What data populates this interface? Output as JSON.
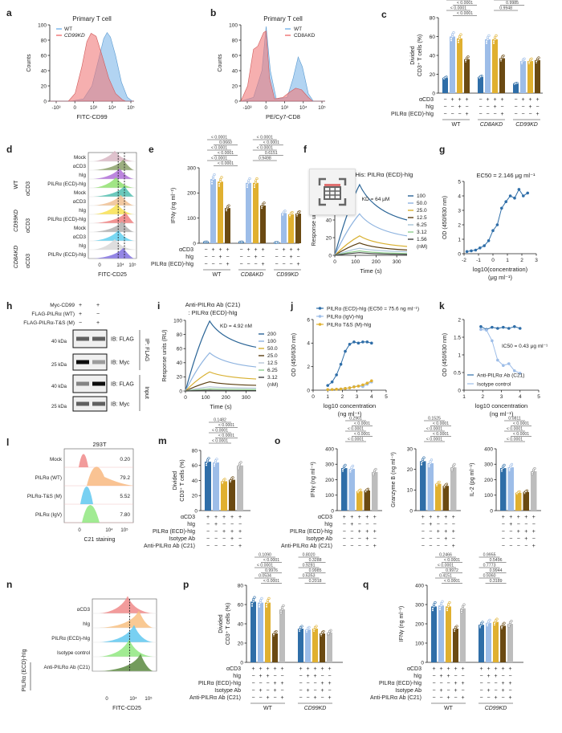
{
  "figure_title": "",
  "overlay_icon": "table-scan-icon",
  "colors": {
    "dark_blue": "#2f6ea8",
    "light_blue": "#9dbde8",
    "gold": "#e0b030",
    "brown": "#6b4a12",
    "grey": "#bdbdbd",
    "wt_hist": "#7fb8ea",
    "kd_hist": "#f07a7a"
  },
  "chart_data": [
    {
      "panel": "a",
      "type": "area",
      "title": "Primary T cell",
      "xlabel": "FITC-CD99",
      "ylabel": "Counts",
      "xticks": [
        "-10³",
        "0",
        "10³",
        "10⁴",
        "10⁵"
      ],
      "yticks": [
        0,
        20,
        40,
        60,
        80,
        100
      ],
      "ylim": [
        0,
        100
      ],
      "legend": [
        "WT",
        "CD99KD"
      ],
      "legend_position": "top-left",
      "series": [
        {
          "name": "WT",
          "peak_x": "10⁴",
          "peak_y": 90
        },
        {
          "name": "CD99KD",
          "peak_x": "10³·⁵",
          "peak_y": 89
        }
      ]
    },
    {
      "panel": "b",
      "type": "area",
      "title": "Primary T cell",
      "xlabel": "PE/Cy7-CD8",
      "ylabel": "Counts",
      "xticks": [
        "-10³",
        "0",
        "10³",
        "10⁴",
        "10⁵"
      ],
      "yticks": [
        0,
        20,
        40,
        60,
        80,
        100
      ],
      "ylim": [
        0,
        100
      ],
      "legend": [
        "WT",
        "CD8AKD"
      ],
      "legend_position": "top-right",
      "series": [
        {
          "name": "WT",
          "peaks": [
            {
              "x": "0",
              "y": 98
            },
            {
              "x": "10³·⁵",
              "y": 58
            }
          ]
        },
        {
          "name": "CD8AKD",
          "peaks": [
            {
              "x": "0",
              "y": 92
            },
            {
              "x": "-10²·⁵",
              "y": 72
            },
            {
              "x": "10³·⁵",
              "y": 17
            }
          ]
        }
      ]
    },
    {
      "panel": "c",
      "type": "bar",
      "ylabel": "Divided CD3⁺ T cells (%)",
      "ylim": [
        0,
        80
      ],
      "yticks": [
        0,
        20,
        40,
        60,
        80
      ],
      "groups": [
        "WT",
        "CD8AKD",
        "CD99KD"
      ],
      "conditions": {
        "αCD3": [
          "−",
          "+",
          "+",
          "+"
        ],
        "hIg": [
          "−",
          "−",
          "+",
          "−"
        ],
        "PILRα (ECD)-hIg": [
          "−",
          "−",
          "−",
          "+"
        ]
      },
      "values": [
        [
          16,
          60,
          58,
          36
        ],
        [
          17,
          57,
          57,
          37
        ],
        [
          10,
          34,
          34,
          35
        ]
      ],
      "pvalues": [
        "< 0.0001",
        "0.1823",
        "< 0.0001",
        "< 0.0001",
        "< 0.0001",
        "< 0.0001",
        "< 0.0001",
        "< 0.0001",
        "< 0.0001",
        "0.9985",
        "0.9948"
      ]
    },
    {
      "panel": "d",
      "type": "area",
      "xlabel": "FITC-CD25",
      "xticks": [
        "0",
        "10⁴",
        "10⁵"
      ],
      "rows": [
        "Mock",
        "αCD3",
        "hIg",
        "PILRα (ECD)-hIg",
        "Mock",
        "αCD3",
        "hIg",
        "PILRα (ECD)-hIg",
        "Mock",
        "αCD3",
        "hIg",
        "PILRv (ECD)-hIg"
      ],
      "row_groups": [
        "WT",
        "CD99KD",
        "CD8AKD"
      ],
      "row_colors": [
        "#d9b7c4",
        "#8ba06a",
        "#b070d8",
        "#90e070",
        "#50c0b0",
        "#f0c090",
        "#f8e050",
        "#f08080",
        "#b0b0b0",
        "#60d0f0",
        "#d8d8d8",
        "#8070e0"
      ]
    },
    {
      "panel": "e",
      "type": "bar",
      "ylabel": "IFNγ (ng ml⁻¹)",
      "ylim": [
        0,
        300
      ],
      "yticks": [
        0,
        100,
        200,
        300
      ],
      "groups": [
        "WT",
        "CD8AKD",
        "CD99KD"
      ],
      "conditions": {
        "αCD3": [
          "−",
          "+",
          "+",
          "+"
        ],
        "hIg": [
          "−",
          "−",
          "+",
          "−"
        ],
        "PILRα (ECD)-hIg": [
          "−",
          "−",
          "−",
          "+"
        ]
      },
      "values": [
        [
          5,
          255,
          245,
          140
        ],
        [
          5,
          240,
          240,
          150
        ],
        [
          3,
          120,
          115,
          118
        ]
      ],
      "pvalues": [
        "< 0.0001",
        "0.0660",
        "< 0.0001",
        "< 0.0001",
        "< 0.0001",
        "< 0.0001",
        "< 0.0001",
        "< 0.0001",
        "< 0.0001",
        "0.6151",
        "0.9498"
      ]
    },
    {
      "panel": "f",
      "type": "line",
      "title": "-His: PILRα (ECD)-hIg",
      "xlabel": "Time (s)",
      "ylabel": "Response units (RU)",
      "xlim": [
        0,
        350
      ],
      "xticks": [
        0,
        100,
        200,
        300
      ],
      "ylim": [
        0,
        80
      ],
      "yticks": [
        0,
        20,
        40,
        60
      ],
      "annotation": "KD = 64 μM",
      "legend_unit": "(nM)",
      "series": [
        {
          "name": "100",
          "peak": 80,
          "end": 40,
          "color": "#2a6496"
        },
        {
          "name": "50.0",
          "peak": 47,
          "end": 22,
          "color": "#8fb4e0"
        },
        {
          "name": "25.0",
          "peak": 22,
          "end": 10,
          "color": "#d8b030"
        },
        {
          "name": "12.5",
          "peak": 14,
          "end": 6,
          "color": "#5a3e10"
        },
        {
          "name": "6.25",
          "peak": 8,
          "end": 4,
          "color": "#a8c4d8"
        },
        {
          "name": "3.12",
          "peak": 5,
          "end": 2,
          "color": "#90d090"
        },
        {
          "name": "1.56",
          "peak": 3,
          "end": 1,
          "color": "#404040"
        }
      ]
    },
    {
      "panel": "g",
      "type": "scatter",
      "title": "EC50 = 2.146 μg ml⁻¹",
      "xlabel": "log10(concentration)",
      "xlabel2": "(μg ml⁻¹)",
      "ylabel": "OD (450/630 nm)",
      "xlim": [
        -2,
        3
      ],
      "xticks": [
        -2,
        -1,
        0,
        1,
        2,
        3
      ],
      "ylim": [
        0,
        5
      ],
      "yticks": [
        0,
        1,
        2,
        3,
        4,
        5
      ],
      "x": [
        -1.8,
        -1.5,
        -1.2,
        -0.9,
        -0.6,
        -0.3,
        0.0,
        0.3,
        0.6,
        0.9,
        1.2,
        1.5,
        1.8,
        2.1,
        2.4
      ],
      "y": [
        0.15,
        0.2,
        0.25,
        0.4,
        0.55,
        0.9,
        1.6,
        2.0,
        3.15,
        3.6,
        4.0,
        3.85,
        4.45,
        4.0,
        4.2
      ]
    },
    {
      "panel": "h",
      "type": "table",
      "title": "Western blot",
      "conditions": {
        "Myc-CD99": [
          "+",
          "+"
        ],
        "FLAG-PILRα (WT)": [
          "+",
          "−"
        ],
        "FLAG-PILRα-T&S (M)": [
          "−",
          "+"
        ]
      },
      "blots": [
        "IB: FLAG",
        "IB: Myc",
        "IB: FLAG",
        "IB: Myc"
      ],
      "mw": [
        "40 kDa",
        "25 kDa",
        "40 kDa",
        "25 kDa"
      ],
      "sections": [
        "IP: FLAG",
        "Input"
      ]
    },
    {
      "panel": "i",
      "type": "line",
      "title": "Anti-PILRα Ab (C21)",
      "subtitle": ": PILRα (ECD)-hIg",
      "xlabel": "Time (s)",
      "ylabel": "Response units (RU)",
      "xlim": [
        0,
        350
      ],
      "xticks": [
        0,
        100,
        200,
        300
      ],
      "ylim": [
        0,
        100
      ],
      "yticks": [
        0,
        20,
        40,
        60,
        80,
        100
      ],
      "annotation": "KD = 4.92 nM",
      "legend_unit": "(nM)",
      "series": [
        {
          "name": "200",
          "peak": 99,
          "end": 62,
          "color": "#2a6496"
        },
        {
          "name": "100",
          "peak": 54,
          "end": 34,
          "color": "#8fb4e0"
        },
        {
          "name": "50.0",
          "peak": 27,
          "end": 17,
          "color": "#d8b030"
        },
        {
          "name": "25.0",
          "peak": 13,
          "end": 8,
          "color": "#5a3e10"
        },
        {
          "name": "12.5",
          "peak": 6,
          "end": 4,
          "color": "#b8c8d8"
        },
        {
          "name": "6.25",
          "peak": 3,
          "end": 2,
          "color": "#90d090"
        },
        {
          "name": "3.12",
          "peak": 1,
          "end": 0.5,
          "color": "#404040"
        }
      ]
    },
    {
      "panel": "j",
      "type": "scatter",
      "xlabel": "log10 concentration",
      "xlabel2": "(ng ml⁻¹)",
      "ylabel": "OD (450/630 nm)",
      "xlim": [
        0,
        5
      ],
      "xticks": [
        0,
        1,
        2,
        3,
        4,
        5
      ],
      "ylim": [
        0,
        6
      ],
      "yticks": [
        0,
        2,
        4,
        6
      ],
      "legend_position": "top",
      "series": [
        {
          "name": "PILRα (ECD)-hIg (EC50 = 75.6 ng ml⁻¹)",
          "color": "#2f6ea8",
          "x": [
            1.0,
            1.3,
            1.6,
            1.9,
            2.2,
            2.5,
            2.8,
            3.1,
            3.4,
            3.7,
            4.0
          ],
          "y": [
            0.4,
            0.7,
            1.3,
            2.2,
            3.3,
            3.9,
            4.1,
            4.0,
            4.1,
            4.1,
            4.0
          ]
        },
        {
          "name": "PILRα (IgV)-hIg",
          "color": "#9dbde8",
          "x": [
            1.0,
            1.3,
            1.6,
            1.9,
            2.2,
            2.5,
            2.8,
            3.1,
            3.4,
            3.7,
            4.0
          ],
          "y": [
            0.05,
            0.05,
            0.08,
            0.1,
            0.15,
            0.2,
            0.3,
            0.35,
            0.3,
            0.5,
            0.7
          ]
        },
        {
          "name": "PILRα T&S (M)-hIg",
          "color": "#e0b030",
          "x": [
            1.0,
            1.3,
            1.6,
            1.9,
            2.2,
            2.5,
            2.8,
            3.1,
            3.4,
            3.7,
            4.0
          ],
          "y": [
            0.05,
            0.06,
            0.08,
            0.1,
            0.15,
            0.2,
            0.28,
            0.35,
            0.45,
            0.6,
            0.8
          ]
        }
      ]
    },
    {
      "panel": "k",
      "type": "scatter",
      "xlabel": "log10 concentration",
      "xlabel2": "(ng ml⁻¹)",
      "ylabel": "OD (450/630 nm)",
      "xlim": [
        1,
        5
      ],
      "xticks": [
        1,
        2,
        3,
        4,
        5
      ],
      "ylim": [
        0,
        2.0
      ],
      "yticks": [
        0,
        0.5,
        1.0,
        1.5,
        2.0
      ],
      "annotation": "IC50 = 0.43 μg ml⁻¹",
      "legend_position": "bottom-left",
      "series": [
        {
          "name": "Anti-PILRα Ab (C21)",
          "color": "#2f6ea8",
          "x": [
            1.9,
            2.2,
            2.5,
            2.8,
            3.1,
            3.4,
            3.7,
            4.0
          ],
          "y": [
            1.8,
            1.72,
            1.78,
            1.75,
            1.78,
            1.75,
            1.8,
            1.75
          ]
        },
        {
          "name": "Isotype control",
          "color": "#9dbde8",
          "x": [
            1.9,
            2.2,
            2.5,
            2.8,
            3.1,
            3.4,
            3.7,
            4.0
          ],
          "y": [
            1.72,
            1.7,
            1.4,
            0.85,
            0.7,
            0.75,
            0.55,
            0.48
          ]
        }
      ]
    },
    {
      "panel": "l",
      "type": "area",
      "title": "293T",
      "xlabel": "C21 staining",
      "xticks": [
        "0",
        "10⁴",
        "10⁵"
      ],
      "rows": [
        {
          "label": "Mock",
          "value": "0.20"
        },
        {
          "label": "PILRα (WT)",
          "value": "79.2"
        },
        {
          "label": "PILRα-T&S (M)",
          "value": "5.52"
        },
        {
          "label": "PILRα (IgV)",
          "value": "7.80"
        }
      ]
    },
    {
      "panel": "m",
      "type": "bar",
      "ylabel": "Divided CD3⁺ T cells (%)",
      "ylim": [
        0,
        80
      ],
      "yticks": [
        0,
        20,
        40,
        60,
        80
      ],
      "conditions": {
        "αCD3": [
          "+",
          "+",
          "+",
          "+",
          "+"
        ],
        "hIg": [
          "−",
          "+",
          "−",
          "−",
          "−"
        ],
        "PILRα (ECD)-hIg": [
          "−",
          "−",
          "+",
          "+",
          "+"
        ],
        "Isotype Ab": [
          "−",
          "−",
          "−",
          "+",
          "−"
        ],
        "Anti-PILRα Ab (C21)": [
          "−",
          "−",
          "−",
          "−",
          "+"
        ]
      },
      "values": [
        65,
        64,
        39,
        41,
        60
      ],
      "pvalues": [
        "0.1482",
        "< 0.0001",
        "< 0.0001",
        "< 0.0001",
        "< 0.0001"
      ]
    },
    {
      "panel": "o1",
      "type": "bar",
      "ylabel": "IFNγ (ng ml⁻¹)",
      "ylim": [
        0,
        400
      ],
      "yticks": [
        0,
        100,
        200,
        300,
        400
      ],
      "conditions": {
        "αCD3": [
          "+",
          "+",
          "+",
          "+",
          "+"
        ],
        "hIg": [
          "−",
          "+",
          "−",
          "−",
          "−"
        ],
        "PILRα (ECD)-hIg": [
          "−",
          "−",
          "+",
          "+",
          "+"
        ],
        "Isotype Ab": [
          "−",
          "−",
          "−",
          "+",
          "−"
        ],
        "Anti-PILRα Ab (C21)": [
          "−",
          "−",
          "−",
          "−",
          "+"
        ]
      },
      "values": [
        275,
        270,
        125,
        130,
        250
      ],
      "pvalues": [
        "0.2961",
        "< 0.0001",
        "< 0.0001",
        "< 0.0001",
        "< 0.0001"
      ]
    },
    {
      "panel": "o2",
      "type": "bar",
      "ylabel": "Granzyme B (ng ml⁻¹)",
      "ylim": [
        0,
        30
      ],
      "yticks": [
        0,
        10,
        20,
        30
      ],
      "values": [
        24,
        23,
        13,
        12,
        21
      ],
      "pvalues": [
        "0.1525",
        "< 0.0001",
        "< 0.0001",
        "< 0.0001",
        "< 0.0001"
      ]
    },
    {
      "panel": "o3",
      "type": "bar",
      "ylabel": "IL-2 (pg ml⁻¹)",
      "ylim": [
        0,
        400
      ],
      "yticks": [
        0,
        100,
        200,
        300,
        400
      ],
      "values": [
        275,
        280,
        115,
        120,
        255
      ],
      "pvalues": [
        "0.0811",
        "< 0.0001",
        "< 0.0001",
        "< 0.0001",
        "< 0.0001"
      ]
    },
    {
      "panel": "n",
      "type": "area",
      "xlabel": "FITC-CD25",
      "xticks": [
        "0",
        "10⁴",
        "10⁵"
      ],
      "side_label": "PILRα (ECD)-hIg",
      "rows": [
        "αCD3",
        "hIg",
        "PILRα (ECD)-hIg",
        "Isotype control",
        "Anti-PILRα Ab (C21)"
      ],
      "row_colors": [
        "#f08a8a",
        "#f8c080",
        "#60c8f0",
        "#90e880",
        "#5a8a40"
      ]
    },
    {
      "panel": "p",
      "type": "bar",
      "ylabel": "Divided CD3⁺ T cells (%)",
      "ylim": [
        0,
        80
      ],
      "yticks": [
        0,
        20,
        40,
        60,
        80
      ],
      "groups": [
        "WT",
        "CD99KD"
      ],
      "conditions": {
        "αCD3": [
          "+",
          "+",
          "+",
          "+",
          "+"
        ],
        "hIg": [
          "−",
          "+",
          "+",
          "−",
          "−"
        ],
        "PILRα (ECD)-hIg": [
          "−",
          "−",
          "−",
          "+",
          "+"
        ],
        "Isotype Ab": [
          "−",
          "+",
          "−",
          "+",
          "−"
        ],
        "Anti-PILRα Ab (C21)": [
          "−",
          "−",
          "+",
          "−",
          "+"
        ]
      },
      "values": [
        [
          63,
          62,
          62,
          30,
          55
        ],
        [
          35,
          34,
          35,
          30,
          31
        ]
      ],
      "pvalues": [
        "0.1090",
        "< 0.0001",
        "< 0.0001",
        "0.9976",
        "0.0534",
        "< 0.0001",
        "0.8020",
        "0.3288",
        "0.9281",
        "0.9985",
        "0.6353",
        "0.2018"
      ]
    },
    {
      "panel": "q",
      "type": "bar",
      "ylabel": "IFNγ (ng ml⁻¹)",
      "ylim": [
        0,
        400
      ],
      "yticks": [
        0,
        100,
        200,
        300,
        400
      ],
      "groups": [
        "WT",
        "CD99KD"
      ],
      "conditions": {
        "αCD3": [
          "+",
          "+",
          "+",
          "+",
          "+"
        ],
        "hIg": [
          "−",
          "+",
          "+",
          "−",
          "−"
        ],
        "PILRα (ECD)-hIg": [
          "−",
          "−",
          "−",
          "+",
          "+"
        ],
        "Isotype Ab": [
          "−",
          "+",
          "−",
          "+",
          "−"
        ],
        "Anti-PILRα Ab (C21)": [
          "−",
          "−",
          "+",
          "−",
          "+"
        ]
      },
      "values": [
        [
          290,
          295,
          290,
          175,
          280
        ],
        [
          195,
          205,
          210,
          190,
          200
        ]
      ],
      "pvalues": [
        "0.2466",
        "< 0.0001",
        "< 0.0001",
        "0.9972",
        "0.4151",
        "< 0.0001",
        "0.9955",
        "0.5496",
        "0.7773",
        "0.9944",
        "0.9360",
        "0.3189"
      ]
    }
  ]
}
